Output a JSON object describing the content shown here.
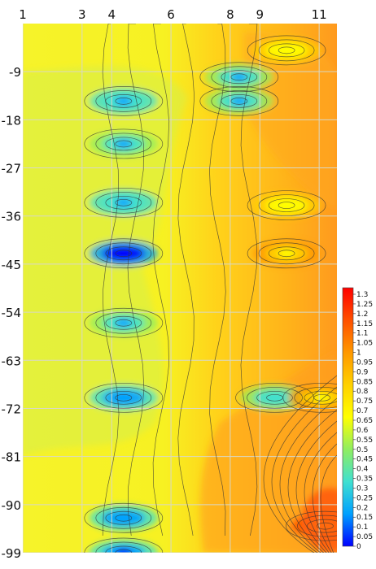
{
  "chart_data": {
    "type": "heatmap",
    "title": "",
    "xlabel": "",
    "ylabel": "",
    "x_ticks": [
      "1",
      "3",
      "4",
      "6",
      "8",
      "9",
      "11"
    ],
    "y_ticks": [
      "-9",
      "-18",
      "-27",
      "-36",
      "-45",
      "-54",
      "-63",
      "-72",
      "-81",
      "-90",
      "-99"
    ],
    "colorbar": {
      "ticks": [
        "1.3",
        "1.25",
        "1.2",
        "1.15",
        "1.1",
        "1.05",
        "1",
        "0.95",
        "0.9",
        "0.85",
        "0.8",
        "0.75",
        "0.7",
        "0.65",
        "0.6",
        "0.55",
        "0.5",
        "0.45",
        "0.4",
        "0.35",
        "0.3",
        "0.25",
        "0.2",
        "0.15",
        "0.1",
        "0.05",
        "0"
      ],
      "range": [
        0,
        1.3
      ],
      "colors": [
        "#0000ff",
        "#00a0ff",
        "#40e0d0",
        "#90ee60",
        "#ffff00",
        "#ffd000",
        "#ff9800",
        "#ff5000",
        "#ff0000"
      ]
    },
    "grid": true,
    "contour_lines": true,
    "x_range": [
      1,
      11.6
    ],
    "y_range": [
      0,
      -99
    ],
    "features": [
      {
        "x": 4.4,
        "y": -14.5,
        "value": 0.25
      },
      {
        "x": 4.4,
        "y": -22.5,
        "value": 0.3
      },
      {
        "x": 4.4,
        "y": -33.5,
        "value": 0.25
      },
      {
        "x": 4.4,
        "y": -43,
        "value": 0.05
      },
      {
        "x": 4.4,
        "y": -56,
        "value": 0.3
      },
      {
        "x": 4.4,
        "y": -70,
        "value": 0.2
      },
      {
        "x": 4.4,
        "y": -92.5,
        "value": 0.2
      },
      {
        "x": 4.4,
        "y": -99,
        "value": 0.1
      },
      {
        "x": 8.3,
        "y": -10,
        "value": 0.3
      },
      {
        "x": 8.3,
        "y": -14.5,
        "value": 0.3
      },
      {
        "x": 9.9,
        "y": -34,
        "value": 0.7
      },
      {
        "x": 9.9,
        "y": -43,
        "value": 0.75
      },
      {
        "x": 9.5,
        "y": -70,
        "value": 0.35
      },
      {
        "x": 11.1,
        "y": -70,
        "value": 0.8
      },
      {
        "x": 9.9,
        "y": -5,
        "value": 0.7
      },
      {
        "x": 11.2,
        "y": -94,
        "value": 0.95
      }
    ]
  }
}
